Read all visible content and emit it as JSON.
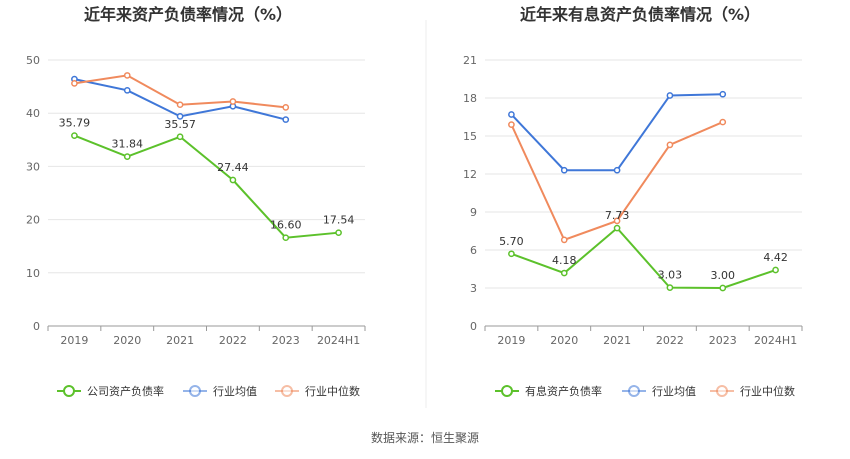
{
  "chart_data": [
    {
      "type": "line",
      "title": "近年来资产负债率情况（%）",
      "categories": [
        "2019",
        "2020",
        "2021",
        "2022",
        "2023",
        "2024H1"
      ],
      "ylim": [
        0,
        50
      ],
      "yticks": [
        "0",
        "10",
        "20",
        "30",
        "40",
        "50"
      ],
      "grid": true,
      "legend_position": "bottom",
      "series": [
        {
          "name": "公司资产负债率",
          "color": "#5cc12b",
          "values": [
            35.79,
            31.84,
            35.57,
            27.44,
            16.6,
            17.54
          ],
          "labels": [
            "35.79",
            "31.84",
            "35.57",
            "27.44",
            "16.60",
            "17.54"
          ]
        },
        {
          "name": "行业均值",
          "color": "#3f77d8",
          "values": [
            46.4,
            44.3,
            39.4,
            41.3,
            38.8,
            null
          ]
        },
        {
          "name": "行业中位数",
          "color": "#f08a5d",
          "values": [
            45.6,
            47.1,
            41.6,
            42.2,
            41.1,
            null
          ]
        }
      ]
    },
    {
      "type": "line",
      "title": "近年来有息资产负债率情况（%）",
      "categories": [
        "2019",
        "2020",
        "2021",
        "2022",
        "2023",
        "2024H1"
      ],
      "ylim": [
        0,
        21
      ],
      "yticks": [
        "0",
        "3",
        "6",
        "9",
        "12",
        "15",
        "18",
        "21"
      ],
      "grid": true,
      "legend_position": "bottom",
      "series": [
        {
          "name": "有息资产负债率",
          "color": "#5cc12b",
          "values": [
            5.7,
            4.18,
            7.73,
            3.03,
            3.0,
            4.42
          ],
          "labels": [
            "5.70",
            "4.18",
            "7.73",
            "3.03",
            "3.00",
            "4.42"
          ]
        },
        {
          "name": "行业均值",
          "color": "#3f77d8",
          "values": [
            16.7,
            12.3,
            12.3,
            18.2,
            18.3,
            null
          ]
        },
        {
          "name": "行业中位数",
          "color": "#f08a5d",
          "values": [
            15.9,
            6.8,
            8.3,
            14.3,
            16.1,
            null
          ]
        }
      ]
    }
  ],
  "footer": {
    "source": "数据来源：恒生聚源"
  },
  "colors": {
    "grid": "#e6e6e6",
    "axis": "#999999",
    "divider": "#eeeeee"
  }
}
